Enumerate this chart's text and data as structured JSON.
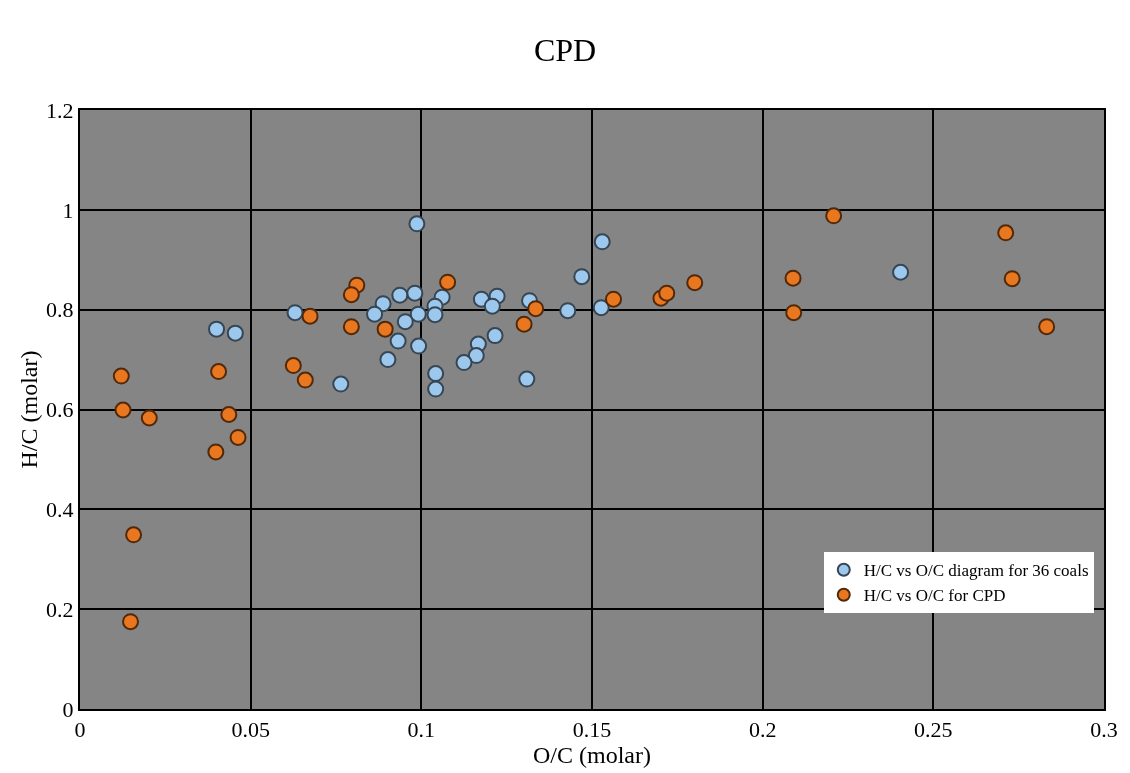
{
  "chart_data": {
    "type": "scatter",
    "title": "CPD",
    "xlabel": "O/C (molar)",
    "ylabel": "H/C (molar)",
    "xlim": [
      0,
      0.3
    ],
    "xticks": [
      0,
      0.05,
      0.1,
      0.15,
      0.2,
      0.25,
      0.3
    ],
    "ylim": [
      0,
      1.2
    ],
    "yticks": [
      0,
      0.2,
      0.4,
      0.6,
      0.8,
      1,
      1.2
    ],
    "grid": true,
    "legend": "bottom right",
    "marker": "circle",
    "series": [
      {
        "name": "H/C vs O/C diagram for 36 coals",
        "color": "#9dc8ee",
        "x": [
          0.0987,
          0.153,
          0.147,
          0.063,
          0.0888,
          0.0863,
          0.0937,
          0.0981,
          0.1061,
          0.104,
          0.104,
          0.0991,
          0.0953,
          null,
          0.1176,
          0.1222,
          0.1208,
          0.1317,
          null,
          0.1429,
          0.1527,
          0.0932,
          0.0992,
          0.0902,
          0.1216,
          0.1167,
          0.1161,
          0.1125,
          0.1042,
          0.1042,
          0.0764,
          0.1309,
          0.04,
          0.0455,
          0.2404
        ],
        "values": [
          0.972,
          0.936,
          0.866,
          0.794,
          0.812,
          0.791,
          0.829,
          0.833,
          0.825,
          0.807,
          0.79,
          0.791,
          0.776,
          null,
          0.821,
          0.827,
          0.807,
          0.818,
          null,
          0.798,
          0.804,
          0.737,
          0.727,
          0.7,
          0.748,
          0.731,
          0.708,
          0.694,
          0.672,
          0.641,
          0.651,
          0.661,
          0.761,
          0.753,
          0.875
        ]
      },
      {
        "name": "H/C vs O/C for CPD",
        "color": "#e8771f",
        "x": [
          0.0811,
          0.0795,
          0.0674,
          0.0795,
          0.0894,
          0.1077,
          0.0625,
          0.066,
          0.1335,
          0.1301,
          0.1563,
          0.1702,
          0.1719,
          0.1801,
          0.2208,
          null,
          0.2089,
          0.2091,
          0.2712,
          0.2731,
          0.2832,
          0.0126,
          0.0203,
          0.0436,
          0.0463,
          0.0398,
          0.0157,
          0.0148,
          0.0121,
          0.0406
        ],
        "values": [
          0.849,
          0.83,
          0.787,
          0.766,
          0.761,
          0.855,
          0.688,
          0.659,
          0.802,
          0.771,
          0.821,
          0.823,
          0.833,
          0.854,
          0.988,
          null,
          0.863,
          0.794,
          0.954,
          0.862,
          0.766,
          0.599,
          0.583,
          0.59,
          0.544,
          0.515,
          0.349,
          0.175,
          0.667,
          0.676
        ]
      }
    ]
  }
}
